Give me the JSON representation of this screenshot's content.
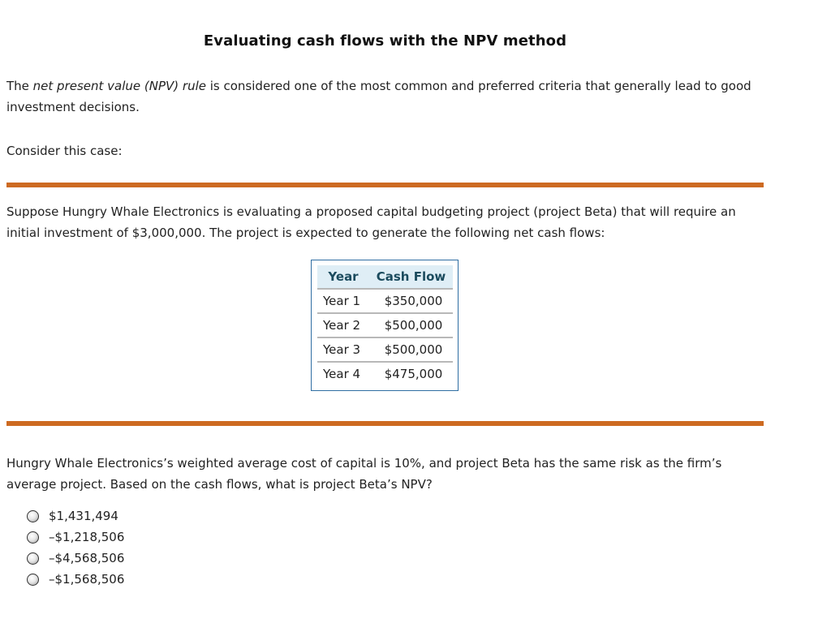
{
  "page": {
    "title": "Evaluating cash flows with the NPV method"
  },
  "intro": {
    "prefix": "The ",
    "emphasis": "net present value (NPV) rule",
    "suffix": " is considered one of the most common and preferred criteria that generally lead to good investment decisions."
  },
  "consider": "Consider this case:",
  "case_text": "Suppose Hungry Whale Electronics is evaluating a proposed capital budgeting project (project Beta) that will require an initial investment of $3,000,000. The project is expected to generate the following net cash flows:",
  "table": {
    "headers": [
      "Year",
      "Cash Flow"
    ],
    "rows": [
      {
        "year": "Year 1",
        "cash_flow": "$350,000"
      },
      {
        "year": "Year 2",
        "cash_flow": "$500,000"
      },
      {
        "year": "Year 3",
        "cash_flow": "$500,000"
      },
      {
        "year": "Year 4",
        "cash_flow": "$475,000"
      }
    ]
  },
  "question": "Hungry Whale Electronics’s weighted average cost of capital is 10%, and project Beta has the same risk as the firm’s average project. Based on the cash flows, what is project Beta’s NPV?",
  "options": [
    {
      "label": "$1,431,494",
      "selected": false
    },
    {
      "label": "–$1,218,506",
      "selected": false
    },
    {
      "label": "–$4,568,506",
      "selected": false
    },
    {
      "label": "–$1,568,506",
      "selected": false
    }
  ],
  "colors": {
    "divider": "#cd6a21",
    "table_border": "#2f6ea3",
    "table_header_bg": "#dfeef6",
    "table_header_text": "#1b4b5e"
  }
}
